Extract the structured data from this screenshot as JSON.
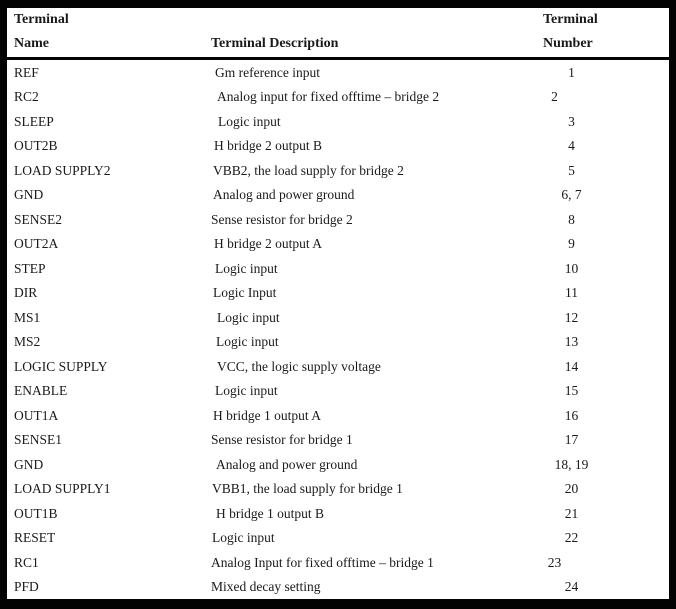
{
  "colors": {
    "background": "#ffffff",
    "text": "#1a1a1a",
    "border": "#030303"
  },
  "table": {
    "header": {
      "name_line1": "Terminal",
      "name_line2": "Name",
      "description": "Terminal Description",
      "number_line1": "Terminal",
      "number_line2": "Number"
    },
    "rows": [
      {
        "name": "REF",
        "desc": "Gm reference input",
        "num": "1",
        "desc_indent": 4,
        "num_shift": false
      },
      {
        "name": "RC2",
        "desc": "Analog input for fixed offtime – bridge 2",
        "num": "2",
        "desc_indent": 6,
        "num_shift": true
      },
      {
        "name": "SLEEP",
        "desc": "Logic input",
        "num": "3",
        "desc_indent": 7,
        "num_shift": false
      },
      {
        "name": "OUT2B",
        "desc": "H bridge 2 output B",
        "num": "4",
        "desc_indent": 3,
        "num_shift": false
      },
      {
        "name": "LOAD SUPPLY2",
        "desc": "VBB2, the load supply for bridge 2",
        "num": "5",
        "desc_indent": 2,
        "num_shift": false
      },
      {
        "name": "GND",
        "desc": "Analog and power ground",
        "num": "6, 7",
        "desc_indent": 2,
        "num_shift": false
      },
      {
        "name": "SENSE2",
        "desc": "Sense resistor for bridge 2",
        "num": "8",
        "desc_indent": 0,
        "num_shift": false
      },
      {
        "name": "OUT2A",
        "desc": "H bridge 2 output A",
        "num": "9",
        "desc_indent": 3,
        "num_shift": false
      },
      {
        "name": "STEP",
        "desc": "Logic input",
        "num": "10",
        "desc_indent": 4,
        "num_shift": false
      },
      {
        "name": "DIR",
        "desc": "Logic Input",
        "num": "11",
        "desc_indent": 2,
        "num_shift": false
      },
      {
        "name": "MS1",
        "desc": "Logic input",
        "num": "12",
        "desc_indent": 6,
        "num_shift": false
      },
      {
        "name": "MS2",
        "desc": "Logic input",
        "num": "13",
        "desc_indent": 5,
        "num_shift": false
      },
      {
        "name": "LOGIC SUPPLY",
        "desc": "VCC, the logic supply voltage",
        "num": "14",
        "desc_indent": 6,
        "num_shift": false
      },
      {
        "name": "ENABLE",
        "desc": "Logic input",
        "num": "15",
        "desc_indent": 4,
        "num_shift": false
      },
      {
        "name": "OUT1A",
        "desc": "H bridge 1 output A",
        "num": "16",
        "desc_indent": 2,
        "num_shift": false
      },
      {
        "name": "SENSE1",
        "desc": "Sense resistor for bridge 1",
        "num": "17",
        "desc_indent": 0,
        "num_shift": false
      },
      {
        "name": "GND",
        "desc": "Analog and power ground",
        "num": "18, 19",
        "desc_indent": 5,
        "num_shift": false
      },
      {
        "name": "LOAD SUPPLY1",
        "desc": "VBB1, the load supply for bridge 1",
        "num": "20",
        "desc_indent": 1,
        "num_shift": false
      },
      {
        "name": "OUT1B",
        "desc": "H bridge 1 output B",
        "num": "21",
        "desc_indent": 5,
        "num_shift": false
      },
      {
        "name": "RESET",
        "desc": "Logic input",
        "num": "22",
        "desc_indent": 1,
        "num_shift": false
      },
      {
        "name": "RC1",
        "desc": "Analog Input for fixed offtime – bridge 1",
        "num": "23",
        "desc_indent": 0,
        "num_shift": true
      },
      {
        "name": "PFD",
        "desc": "Mixed decay setting",
        "num": "24",
        "desc_indent": 0,
        "num_shift": false
      }
    ]
  }
}
